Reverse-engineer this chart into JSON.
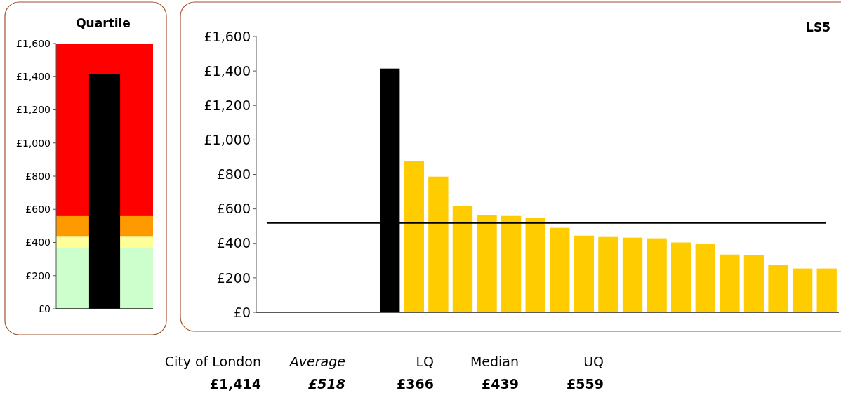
{
  "chart_data": [
    {
      "type": "bar",
      "title": "Quartile",
      "categories": [
        null
      ],
      "values": [
        1414
      ],
      "colors": [
        "#000000"
      ],
      "ylim": [
        0,
        1600
      ],
      "yticks": [
        {
          "value": 0,
          "label": "£0"
        },
        {
          "value": 200,
          "label": "£200"
        },
        {
          "value": 400,
          "label": "£400"
        },
        {
          "value": 600,
          "label": "£600"
        },
        {
          "value": 800,
          "label": "£800"
        },
        {
          "value": 1000,
          "label": "£1,000"
        },
        {
          "value": 1200,
          "label": "£1,200"
        },
        {
          "value": 1400,
          "label": "£1,400"
        },
        {
          "value": 1600,
          "label": "£1,600"
        }
      ],
      "bands": [
        {
          "axis": "y",
          "from": 0,
          "to": 366,
          "color": "#ccffcc"
        },
        {
          "axis": "y",
          "from": 366,
          "to": 439,
          "color": "#ffff99"
        },
        {
          "axis": "y",
          "from": 439,
          "to": 559,
          "color": "#ff9900"
        },
        {
          "axis": "y",
          "from": 559,
          "to": 1600,
          "color": "#ff0000"
        }
      ]
    },
    {
      "type": "bar",
      "title": "LS5",
      "categories": [
        null,
        null,
        null,
        null,
        null,
        null,
        null,
        null,
        null,
        null,
        null,
        null,
        null,
        null,
        null,
        null,
        null,
        null,
        null,
        null,
        null,
        null,
        null,
        null
      ],
      "values": [
        null,
        null,
        null,
        null,
        null,
        1414,
        876,
        787,
        616,
        563,
        559,
        547,
        490,
        445,
        441,
        433,
        429,
        405,
        396,
        335,
        331,
        274,
        254,
        254
      ],
      "colors": [
        null,
        null,
        null,
        null,
        null,
        "#000000",
        "#ffcc00",
        "#ffcc00",
        "#ffcc00",
        "#ffcc00",
        "#ffcc00",
        "#ffcc00",
        "#ffcc00",
        "#ffcc00",
        "#ffcc00",
        "#ffcc00",
        "#ffcc00",
        "#ffcc00",
        "#ffcc00",
        "#ffcc00",
        "#ffcc00",
        "#ffcc00",
        "#ffcc00",
        "#ffcc00"
      ],
      "ylim": [
        0,
        1600
      ],
      "yticks": [
        {
          "value": 0,
          "label": "£0"
        },
        {
          "value": 200,
          "label": "£200"
        },
        {
          "value": 400,
          "label": "£400"
        },
        {
          "value": 600,
          "label": "£600"
        },
        {
          "value": 800,
          "label": "£800"
        },
        {
          "value": 1000,
          "label": "£1,000"
        },
        {
          "value": 1200,
          "label": "£1,200"
        },
        {
          "value": 1400,
          "label": "£1,400"
        },
        {
          "value": 1600,
          "label": "£1,600"
        }
      ],
      "ref_lines": [
        {
          "axis": "y",
          "value": 518,
          "color": "#000000"
        }
      ],
      "annotations": [
        "City of London",
        "£1,414",
        "Average",
        "£518",
        "LQ",
        "£366",
        "Median",
        "£439",
        "UQ",
        "£559"
      ]
    }
  ]
}
